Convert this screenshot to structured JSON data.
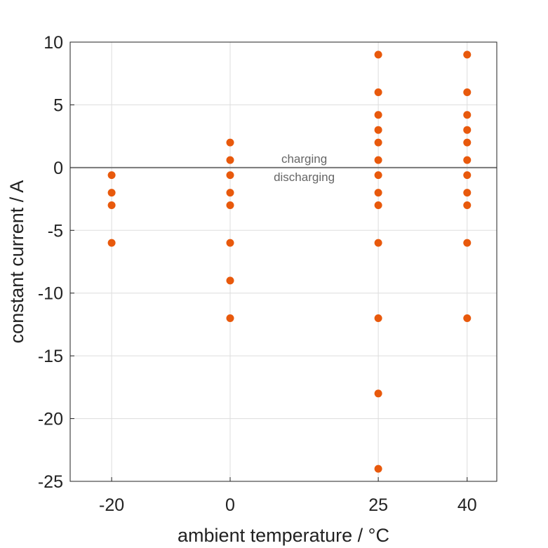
{
  "chart_data": {
    "type": "scatter",
    "xlabel": "ambient temperature / °C",
    "ylabel": "constant current / A",
    "xlim": [
      -27,
      45
    ],
    "ylim": [
      -25,
      10
    ],
    "xticks": [
      -20,
      0,
      25,
      40
    ],
    "yticks": [
      10,
      5,
      0,
      -5,
      -10,
      -15,
      -20,
      -25
    ],
    "grid": true,
    "marker_color": "#e8590c",
    "zero_line_color": "#777777",
    "annotations": {
      "above_zero": "charging",
      "below_zero": "discharging",
      "x": 12.5
    },
    "series": [
      {
        "name": "-20 °C",
        "x": -20,
        "values": [
          -0.6,
          -2,
          -3,
          -6
        ]
      },
      {
        "name": "0 °C",
        "x": 0,
        "values": [
          2,
          0.6,
          -0.6,
          -2,
          -3,
          -6,
          -9,
          -12
        ]
      },
      {
        "name": "25 °C",
        "x": 25,
        "values": [
          9,
          6,
          4.2,
          3,
          2,
          0.6,
          -0.6,
          -2,
          -3,
          -6,
          -12,
          -18,
          -24
        ]
      },
      {
        "name": "40 °C",
        "x": 40,
        "values": [
          9,
          6,
          4.2,
          3,
          2,
          0.6,
          -0.6,
          -2,
          -3,
          -6,
          -12
        ]
      }
    ]
  }
}
